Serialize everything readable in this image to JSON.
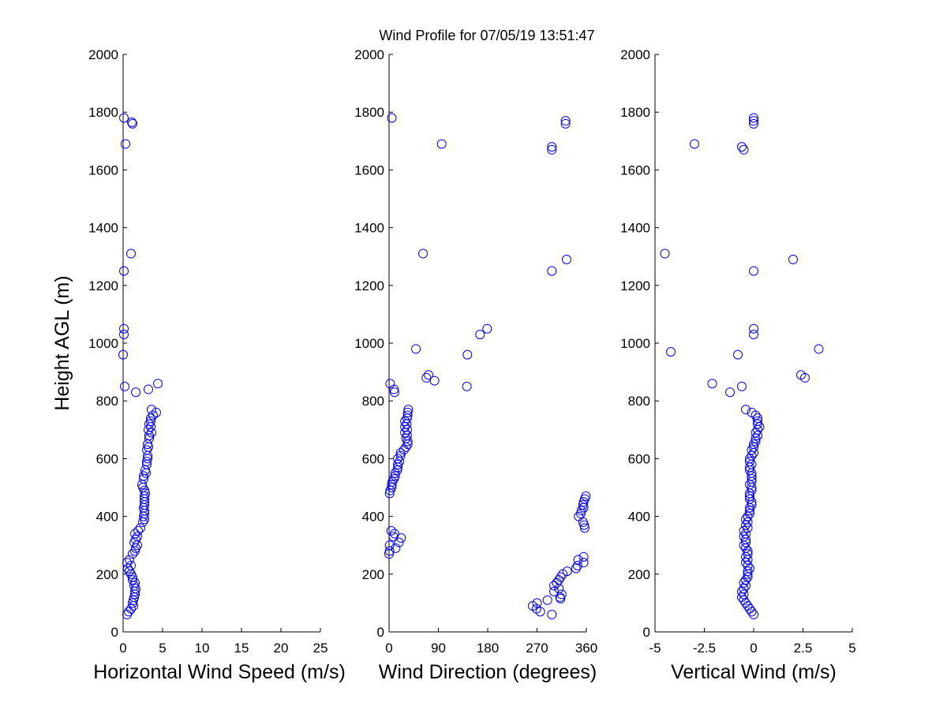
{
  "title": "Wind Profile for  07/05/19 13:51:47",
  "chart_data": [
    {
      "type": "scatter",
      "xlabel": "Horizontal Wind Speed (m/s)",
      "ylabel": "Height AGL (m)",
      "xlim": [
        0,
        25
      ],
      "ylim": [
        0,
        2000
      ],
      "xticks": [
        "0",
        "5",
        "10",
        "15",
        "20",
        "25"
      ],
      "yticks": [
        "0",
        "200",
        "400",
        "600",
        "800",
        "1000",
        "1200",
        "1400",
        "1600",
        "1800",
        "2000"
      ],
      "marker_color": "#0000ff",
      "marker": "open-circle",
      "points": [
        [
          0.1,
          1780
        ],
        [
          1.1,
          1765
        ],
        [
          1.2,
          1760
        ],
        [
          0.3,
          1690
        ],
        [
          1.0,
          1310
        ],
        [
          0.1,
          1250
        ],
        [
          0.1,
          1050
        ],
        [
          0.1,
          1030
        ],
        [
          0.0,
          960
        ],
        [
          4.4,
          860
        ],
        [
          0.2,
          850
        ],
        [
          3.2,
          840
        ],
        [
          1.6,
          830
        ],
        [
          4.2,
          760
        ],
        [
          3.6,
          770
        ],
        [
          3.8,
          750
        ],
        [
          3.5,
          740
        ],
        [
          3.5,
          730
        ],
        [
          3.3,
          720
        ],
        [
          3.5,
          710
        ],
        [
          3.2,
          700
        ],
        [
          3.6,
          690
        ],
        [
          3.3,
          680
        ],
        [
          3.3,
          670
        ],
        [
          3.1,
          650
        ],
        [
          3.2,
          640
        ],
        [
          3.0,
          630
        ],
        [
          3.1,
          610
        ],
        [
          3.1,
          600
        ],
        [
          3.0,
          590
        ],
        [
          3.0,
          580
        ],
        [
          2.8,
          560
        ],
        [
          2.9,
          550
        ],
        [
          2.6,
          540
        ],
        [
          2.6,
          530
        ],
        [
          2.4,
          510
        ],
        [
          2.5,
          500
        ],
        [
          2.7,
          490
        ],
        [
          2.8,
          480
        ],
        [
          2.7,
          470
        ],
        [
          2.7,
          460
        ],
        [
          2.7,
          450
        ],
        [
          2.7,
          440
        ],
        [
          2.6,
          430
        ],
        [
          2.7,
          420
        ],
        [
          2.7,
          410
        ],
        [
          2.6,
          400
        ],
        [
          2.7,
          390
        ],
        [
          2.5,
          380
        ],
        [
          2.2,
          360
        ],
        [
          1.9,
          350
        ],
        [
          1.5,
          340
        ],
        [
          1.8,
          330
        ],
        [
          1.6,
          320
        ],
        [
          1.4,
          310
        ],
        [
          1.8,
          300
        ],
        [
          1.6,
          290
        ],
        [
          1.5,
          280
        ],
        [
          1.2,
          270
        ],
        [
          0.8,
          250
        ],
        [
          0.5,
          240
        ],
        [
          1.0,
          230
        ],
        [
          0.6,
          220
        ],
        [
          0.8,
          210
        ],
        [
          1.0,
          200
        ],
        [
          1.2,
          190
        ],
        [
          1.2,
          180
        ],
        [
          1.5,
          170
        ],
        [
          1.4,
          160
        ],
        [
          1.6,
          150
        ],
        [
          1.5,
          140
        ],
        [
          1.5,
          130
        ],
        [
          1.4,
          120
        ],
        [
          1.3,
          110
        ],
        [
          1.2,
          100
        ],
        [
          1.3,
          90
        ],
        [
          1.0,
          80
        ],
        [
          0.7,
          70
        ],
        [
          0.5,
          60
        ]
      ]
    },
    {
      "type": "scatter",
      "xlabel": "Wind Direction (degrees)",
      "ylabel": "",
      "xlim": [
        0,
        360
      ],
      "ylim": [
        0,
        2000
      ],
      "xticks": [
        "0",
        "90",
        "180",
        "270",
        "360"
      ],
      "yticks": [
        "0",
        "200",
        "400",
        "600",
        "800",
        "1000",
        "1200",
        "1400",
        "1600",
        "1800",
        "2000"
      ],
      "marker_color": "#0000ff",
      "marker": "open-circle",
      "points": [
        [
          5,
          1780
        ],
        [
          322,
          1770
        ],
        [
          322,
          1760
        ],
        [
          96,
          1690
        ],
        [
          297,
          1680
        ],
        [
          297,
          1670
        ],
        [
          62,
          1310
        ],
        [
          324,
          1290
        ],
        [
          297,
          1250
        ],
        [
          179,
          1050
        ],
        [
          166,
          1030
        ],
        [
          49,
          980
        ],
        [
          143,
          960
        ],
        [
          72,
          890
        ],
        [
          68,
          880
        ],
        [
          83,
          870
        ],
        [
          2,
          860
        ],
        [
          142,
          850
        ],
        [
          9,
          840
        ],
        [
          10,
          830
        ],
        [
          35,
          770
        ],
        [
          34,
          760
        ],
        [
          34,
          750
        ],
        [
          33,
          740
        ],
        [
          29,
          730
        ],
        [
          32,
          720
        ],
        [
          29,
          710
        ],
        [
          33,
          700
        ],
        [
          29,
          690
        ],
        [
          33,
          680
        ],
        [
          31,
          670
        ],
        [
          34,
          660
        ],
        [
          34,
          650
        ],
        [
          31,
          640
        ],
        [
          27,
          630
        ],
        [
          21,
          620
        ],
        [
          21,
          610
        ],
        [
          16,
          600
        ],
        [
          19,
          590
        ],
        [
          16,
          580
        ],
        [
          16,
          570
        ],
        [
          15,
          560
        ],
        [
          11,
          550
        ],
        [
          11,
          540
        ],
        [
          9,
          530
        ],
        [
          6,
          520
        ],
        [
          5,
          510
        ],
        [
          5,
          500
        ],
        [
          2,
          490
        ],
        [
          1,
          480
        ],
        [
          359,
          470
        ],
        [
          357,
          460
        ],
        [
          355,
          450
        ],
        [
          354,
          440
        ],
        [
          355,
          430
        ],
        [
          351,
          420
        ],
        [
          350,
          410
        ],
        [
          346,
          400
        ],
        [
          354,
          380
        ],
        [
          356,
          370
        ],
        [
          357,
          360
        ],
        [
          4,
          350
        ],
        [
          10,
          340
        ],
        [
          8,
          330
        ],
        [
          22,
          325
        ],
        [
          18,
          310
        ],
        [
          1,
          300
        ],
        [
          12,
          290
        ],
        [
          1,
          280
        ],
        [
          0,
          270
        ],
        [
          355,
          260
        ],
        [
          345,
          250
        ],
        [
          355,
          240
        ],
        [
          344,
          230
        ],
        [
          341,
          220
        ],
        [
          325,
          210
        ],
        [
          317,
          200
        ],
        [
          313,
          190
        ],
        [
          310,
          180
        ],
        [
          306,
          170
        ],
        [
          301,
          160
        ],
        [
          310,
          150
        ],
        [
          301,
          140
        ],
        [
          315,
          130
        ],
        [
          312,
          120
        ],
        [
          313,
          115
        ],
        [
          289,
          110
        ],
        [
          270,
          100
        ],
        [
          262,
          90
        ],
        [
          269,
          80
        ],
        [
          276,
          70
        ],
        [
          297,
          60
        ]
      ]
    },
    {
      "type": "scatter",
      "xlabel": "Vertical Wind (m/s)",
      "ylabel": "",
      "xlim": [
        -5,
        5
      ],
      "ylim": [
        0,
        2000
      ],
      "xticks": [
        "-5",
        "-2.5",
        "0",
        "2.5",
        "5"
      ],
      "yticks": [
        "0",
        "200",
        "400",
        "600",
        "800",
        "1000",
        "1200",
        "1400",
        "1600",
        "1800",
        "2000"
      ],
      "marker_color": "#0000ff",
      "marker": "open-circle",
      "points": [
        [
          0.0,
          1780
        ],
        [
          0.0,
          1770
        ],
        [
          0.0,
          1760
        ],
        [
          -3.0,
          1690
        ],
        [
          -0.6,
          1680
        ],
        [
          -0.5,
          1670
        ],
        [
          -4.5,
          1310
        ],
        [
          2.0,
          1290
        ],
        [
          0.0,
          1250
        ],
        [
          0.0,
          1050
        ],
        [
          0.0,
          1030
        ],
        [
          3.3,
          980
        ],
        [
          -4.2,
          970
        ],
        [
          -0.8,
          960
        ],
        [
          2.4,
          890
        ],
        [
          2.6,
          880
        ],
        [
          -2.1,
          860
        ],
        [
          -0.6,
          850
        ],
        [
          -1.2,
          830
        ],
        [
          -0.4,
          770
        ],
        [
          -0.1,
          760
        ],
        [
          0.1,
          750
        ],
        [
          0.2,
          740
        ],
        [
          0.2,
          730
        ],
        [
          0.2,
          720
        ],
        [
          0.3,
          710
        ],
        [
          0.2,
          700
        ],
        [
          0.1,
          690
        ],
        [
          0.2,
          680
        ],
        [
          0.1,
          670
        ],
        [
          0.1,
          660
        ],
        [
          0.0,
          650
        ],
        [
          0.0,
          640
        ],
        [
          -0.1,
          630
        ],
        [
          0.0,
          620
        ],
        [
          -0.1,
          610
        ],
        [
          -0.2,
          600
        ],
        [
          -0.2,
          590
        ],
        [
          -0.1,
          580
        ],
        [
          -0.2,
          570
        ],
        [
          -0.2,
          560
        ],
        [
          -0.1,
          550
        ],
        [
          -0.1,
          540
        ],
        [
          -0.1,
          530
        ],
        [
          -0.1,
          520
        ],
        [
          -0.2,
          510
        ],
        [
          -0.1,
          500
        ],
        [
          -0.1,
          490
        ],
        [
          -0.2,
          480
        ],
        [
          -0.2,
          470
        ],
        [
          -0.2,
          460
        ],
        [
          -0.1,
          450
        ],
        [
          -0.1,
          440
        ],
        [
          -0.2,
          430
        ],
        [
          -0.2,
          420
        ],
        [
          -0.2,
          410
        ],
        [
          -0.3,
          400
        ],
        [
          -0.4,
          390
        ],
        [
          -0.3,
          380
        ],
        [
          -0.4,
          370
        ],
        [
          -0.3,
          360
        ],
        [
          -0.5,
          350
        ],
        [
          -0.4,
          340
        ],
        [
          -0.5,
          330
        ],
        [
          -0.4,
          320
        ],
        [
          -0.4,
          310
        ],
        [
          -0.5,
          300
        ],
        [
          -0.4,
          290
        ],
        [
          -0.3,
          280
        ],
        [
          -0.3,
          270
        ],
        [
          -0.4,
          260
        ],
        [
          -0.3,
          250
        ],
        [
          -0.4,
          240
        ],
        [
          -0.3,
          230
        ],
        [
          -0.2,
          220
        ],
        [
          -0.3,
          210
        ],
        [
          -0.3,
          200
        ],
        [
          -0.3,
          190
        ],
        [
          -0.4,
          180
        ],
        [
          -0.5,
          170
        ],
        [
          -0.4,
          160
        ],
        [
          -0.5,
          150
        ],
        [
          -0.6,
          140
        ],
        [
          -0.5,
          130
        ],
        [
          -0.6,
          120
        ],
        [
          -0.5,
          110
        ],
        [
          -0.4,
          100
        ],
        [
          -0.3,
          90
        ],
        [
          -0.2,
          80
        ],
        [
          -0.1,
          70
        ],
        [
          0.0,
          60
        ]
      ]
    }
  ]
}
